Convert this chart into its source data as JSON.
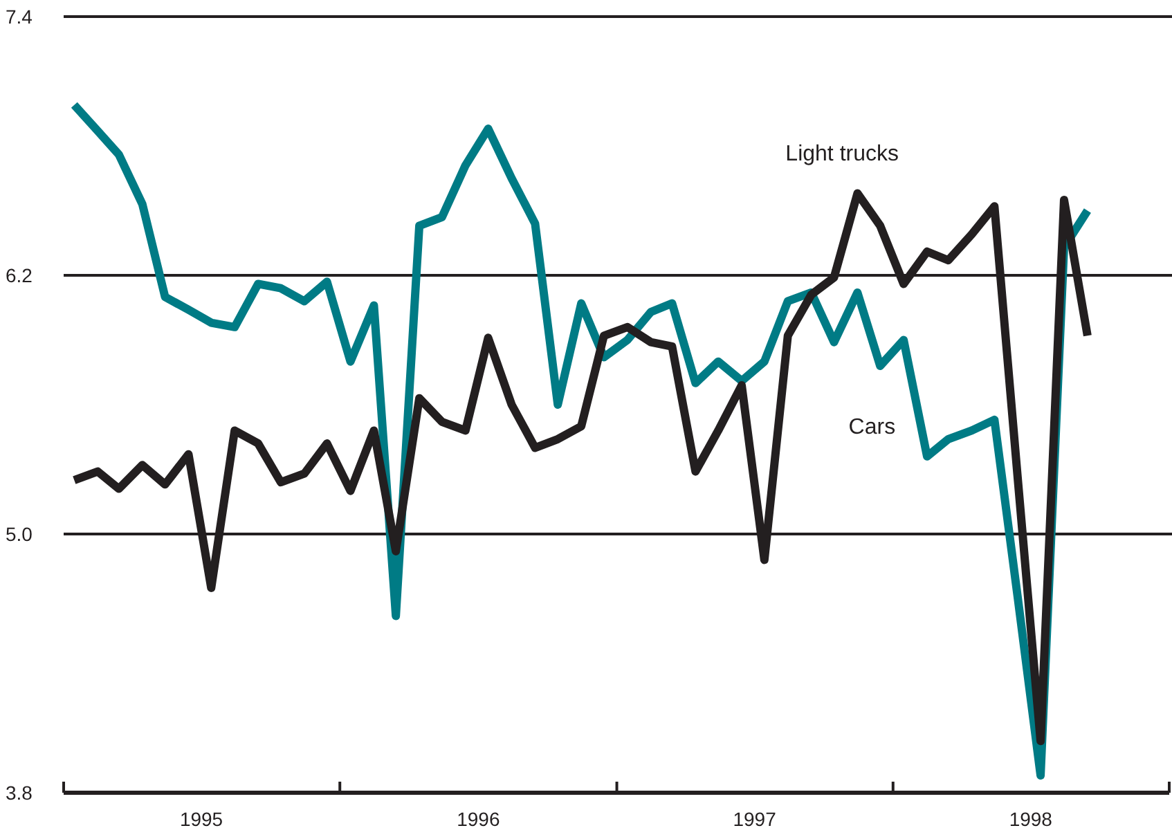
{
  "chart_data": {
    "type": "line",
    "x": [
      "1995-01-15",
      "1995-02-15",
      "1995-03-15",
      "1995-04-15",
      "1995-05-15",
      "1995-06-15",
      "1995-07-15",
      "1995-08-15",
      "1995-09-15",
      "1995-10-15",
      "1995-11-15",
      "1995-12-15",
      "1996-01-15",
      "1996-02-15",
      "1996-03-15",
      "1996-04-15",
      "1996-05-15",
      "1996-06-15",
      "1996-07-15",
      "1996-08-15",
      "1996-09-15",
      "1996-10-15",
      "1996-11-15",
      "1996-12-15",
      "1997-01-15",
      "1997-02-15",
      "1997-03-15",
      "1997-04-15",
      "1997-05-15",
      "1997-06-15",
      "1997-07-15",
      "1997-08-15",
      "1997-09-15",
      "1997-10-15",
      "1997-11-15",
      "1997-12-15",
      "1998-01-15",
      "1998-02-15",
      "1998-03-15",
      "1998-04-15",
      "1998-05-15",
      "1998-06-15",
      "1998-07-15",
      "1998-08-15",
      "1998-09-15"
    ],
    "series": [
      {
        "name": "Cars",
        "color": "#007b85",
        "values": [
          6.99,
          6.87,
          6.76,
          6.53,
          6.1,
          6.04,
          5.98,
          5.96,
          6.16,
          6.14,
          6.08,
          6.17,
          5.8,
          6.06,
          4.62,
          6.43,
          6.47,
          6.71,
          6.88,
          6.65,
          6.44,
          5.6,
          6.07,
          5.82,
          5.9,
          6.03,
          6.07,
          5.7,
          5.8,
          5.71,
          5.8,
          6.08,
          6.12,
          5.89,
          6.12,
          5.78,
          5.9,
          5.36,
          5.44,
          5.48,
          5.53,
          4.7,
          3.88,
          6.33,
          6.5
        ]
      },
      {
        "name": "Light trucks",
        "color": "#231f20",
        "values": [
          5.25,
          5.29,
          5.21,
          5.32,
          5.23,
          5.37,
          4.75,
          5.48,
          5.42,
          5.24,
          5.28,
          5.42,
          5.2,
          5.48,
          4.92,
          5.63,
          5.52,
          5.48,
          5.91,
          5.6,
          5.4,
          5.44,
          5.5,
          5.92,
          5.96,
          5.89,
          5.87,
          5.29,
          5.48,
          5.69,
          4.88,
          5.92,
          6.11,
          6.19,
          6.58,
          6.43,
          6.16,
          6.31,
          6.27,
          6.39,
          6.52,
          5.25,
          4.04,
          6.55,
          5.92
        ]
      }
    ],
    "xlim": [
      "1995-01-01",
      "1999-01-01"
    ],
    "xticks": [
      {
        "value": "1995-01-01",
        "label": null
      },
      {
        "value": "1995-07-02",
        "label": "1995"
      },
      {
        "value": "1996-01-01",
        "label": null
      },
      {
        "value": "1996-07-02",
        "label": "1996"
      },
      {
        "value": "1997-01-01",
        "label": null
      },
      {
        "value": "1997-07-02",
        "label": "1997"
      },
      {
        "value": "1998-01-01",
        "label": null
      },
      {
        "value": "1998-07-02",
        "label": "1998"
      },
      {
        "value": "1999-01-01",
        "label": null
      }
    ],
    "ylim": [
      3.8,
      7.4
    ],
    "yticks": [
      3.8,
      {
        "value": 5,
        "label": "5.0"
      },
      6.2,
      7.4
    ],
    "grid": "y",
    "marker": "none",
    "line_style": "solid"
  }
}
